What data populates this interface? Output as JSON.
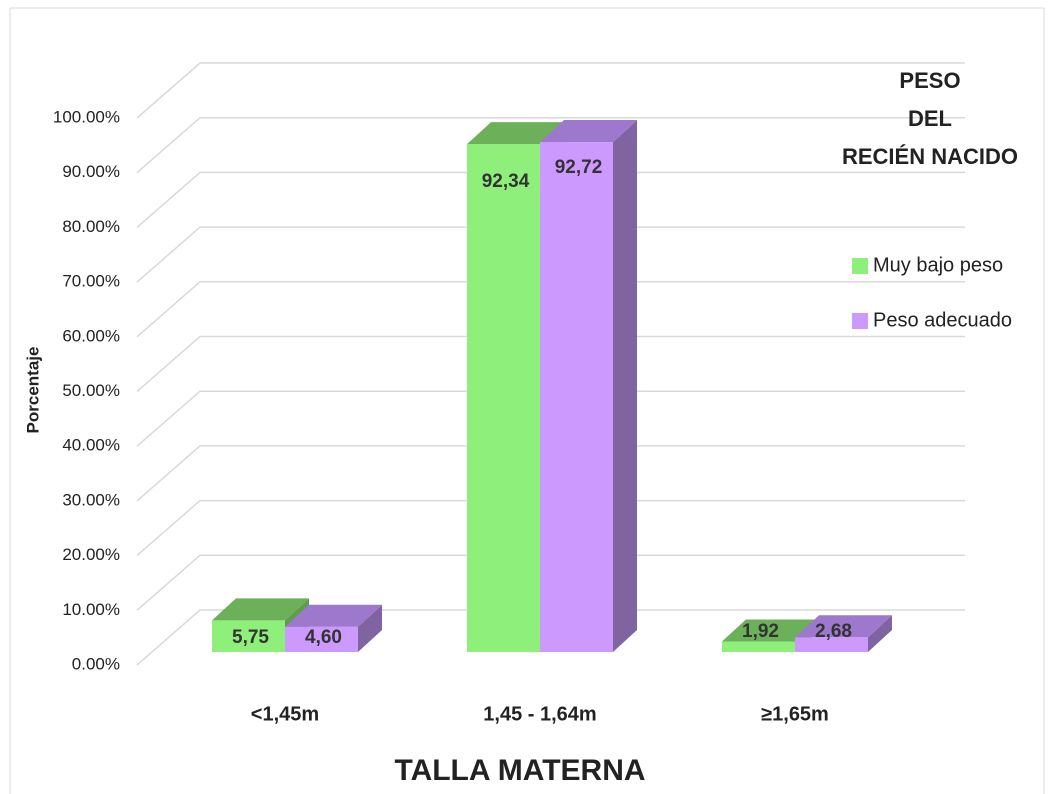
{
  "chart_data": {
    "type": "bar3d",
    "title": [
      "PESO",
      "DEL",
      "RECIÉN NACIDO"
    ],
    "x_label": "TALLA MATERNA",
    "y_label": "Porcentaje",
    "categories": [
      "<1,45m",
      "1,45 - 1,64m",
      "≥1,65m"
    ],
    "series": [
      {
        "name": "Muy bajo peso",
        "color": "#8ef07a",
        "top_color": "#6cb05a",
        "side_color": "#5e9c4e",
        "values": [
          5.75,
          92.34,
          1.92
        ],
        "value_labels": [
          "5,75",
          "92,34",
          "1,92"
        ]
      },
      {
        "name": "Peso adecuado",
        "color": "#cc99ff",
        "top_color": "#9e78cc",
        "side_color": "#8064a2",
        "values": [
          4.6,
          92.72,
          2.68
        ],
        "value_labels": [
          "4,60",
          "92,72",
          "2,68"
        ]
      }
    ],
    "ylim": [
      0,
      100
    ],
    "yticks": [
      {
        "value": 0,
        "label": "0.00%"
      },
      {
        "value": 10,
        "label": "10.00%"
      },
      {
        "value": 20,
        "label": "20.00%"
      },
      {
        "value": 30,
        "label": "30.00%"
      },
      {
        "value": 40,
        "label": "40.00%"
      },
      {
        "value": 50,
        "label": "50.00%"
      },
      {
        "value": 60,
        "label": "60.00%"
      },
      {
        "value": 70,
        "label": "70.00%"
      },
      {
        "value": 80,
        "label": "80.00%"
      },
      {
        "value": 90,
        "label": "90.00%"
      },
      {
        "value": 100,
        "label": "100.00%"
      }
    ],
    "grid": true
  }
}
